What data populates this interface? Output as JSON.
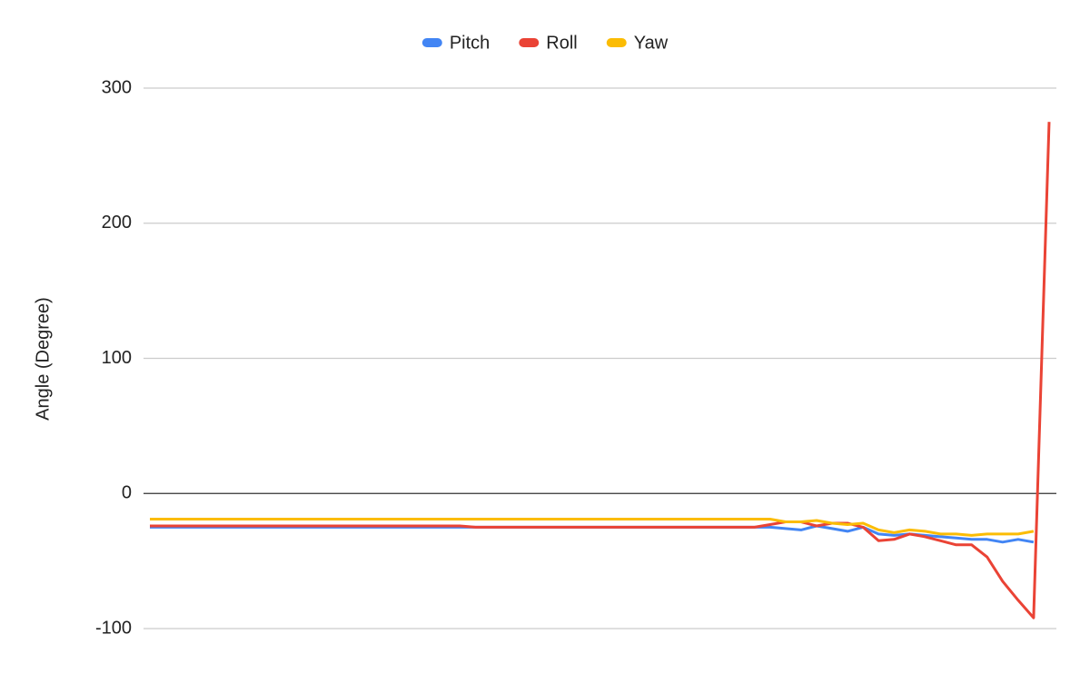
{
  "chart_data": {
    "type": "line",
    "y_axis_label": "Angle (Degree)",
    "categories": [
      null,
      null,
      null,
      null,
      null,
      null,
      null,
      null,
      null,
      null,
      null,
      null,
      null,
      null,
      null,
      null,
      null,
      null,
      null,
      null,
      null,
      null,
      null,
      null,
      null,
      null,
      null,
      null,
      null,
      null,
      null,
      null,
      null,
      null,
      null,
      null,
      null,
      null,
      null,
      null,
      null,
      null,
      null,
      null,
      null,
      null,
      null,
      null,
      null,
      null,
      null,
      null,
      null,
      null,
      null,
      null,
      null,
      null,
      null
    ],
    "series": [
      {
        "name": "Pitch",
        "color": "#4285f4",
        "values": [
          -25,
          -25,
          -25,
          -25,
          -25,
          -25,
          -25,
          -25,
          -25,
          -25,
          -25,
          -25,
          -25,
          -25,
          -25,
          -25,
          -25,
          -25,
          -25,
          -25,
          -25,
          -25,
          -25,
          -25,
          -25,
          -25,
          -25,
          -25,
          -25,
          -25,
          -25,
          -25,
          -25,
          -25,
          -25,
          -25,
          -25,
          -25,
          -25,
          -25,
          -25,
          -26,
          -27,
          -24,
          -26,
          -28,
          -25,
          -30,
          -31,
          -30,
          -31,
          -32,
          -33,
          -34,
          -34,
          -36,
          -34,
          -36,
          null
        ]
      },
      {
        "name": "Roll",
        "color": "#ea4335",
        "values": [
          -24,
          -24,
          -24,
          -24,
          -24,
          -24,
          -24,
          -24,
          -24,
          -24,
          -24,
          -24,
          -24,
          -24,
          -24,
          -24,
          -24,
          -24,
          -24,
          -24,
          -24,
          -25,
          -25,
          -25,
          -25,
          -25,
          -25,
          -25,
          -25,
          -25,
          -25,
          -25,
          -25,
          -25,
          -25,
          -25,
          -25,
          -25,
          -25,
          -25,
          -23,
          -21,
          -21,
          -24,
          -22,
          -22,
          -25,
          -35,
          -34,
          -30,
          -32,
          -35,
          -38,
          -38,
          -47,
          -65,
          -79,
          -92,
          275
        ]
      },
      {
        "name": "Yaw",
        "color": "#fbbc04",
        "values": [
          -19,
          -19,
          -19,
          -19,
          -19,
          -19,
          -19,
          -19,
          -19,
          -19,
          -19,
          -19,
          -19,
          -19,
          -19,
          -19,
          -19,
          -19,
          -19,
          -19,
          -19,
          -19,
          -19,
          -19,
          -19,
          -19,
          -19,
          -19,
          -19,
          -19,
          -19,
          -19,
          -19,
          -19,
          -19,
          -19,
          -19,
          -19,
          -19,
          -19,
          -19,
          -21,
          -21,
          -20,
          -22,
          -23,
          -22,
          -27,
          -29,
          -27,
          -28,
          -30,
          -30,
          -31,
          -30,
          -30,
          -30,
          -28,
          null
        ]
      }
    ],
    "ylim": [
      -100,
      300
    ],
    "yticks": [
      -100,
      0,
      100,
      200,
      300
    ],
    "grid": true,
    "legend": "top"
  }
}
